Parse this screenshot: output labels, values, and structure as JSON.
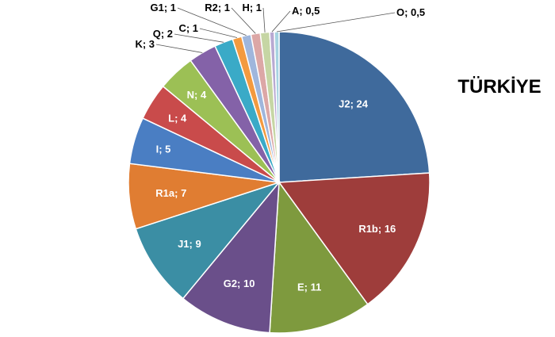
{
  "chart_data": {
    "type": "pie",
    "title": "TÜRKİYE",
    "slices": [
      {
        "label": "J2; 24",
        "value": 24,
        "color": "#3f6a9c"
      },
      {
        "label": "R1b; 16",
        "value": 16,
        "color": "#9e3d3b"
      },
      {
        "label": "E; 11",
        "value": 11,
        "color": "#7e9a3e"
      },
      {
        "label": "G2; 10",
        "value": 10,
        "color": "#6a4f8a"
      },
      {
        "label": "J1; 9",
        "value": 9,
        "color": "#3b8ea4"
      },
      {
        "label": "R1a; 7",
        "value": 7,
        "color": "#e07d32"
      },
      {
        "label": "I; 5",
        "value": 5,
        "color": "#4a7ec3"
      },
      {
        "label": "L; 4",
        "value": 4,
        "color": "#c94b4b"
      },
      {
        "label": "N; 4",
        "value": 4,
        "color": "#9cc055"
      },
      {
        "label": "K; 3",
        "value": 3,
        "color": "#8462a8"
      },
      {
        "label": "Q; 2",
        "value": 2,
        "color": "#3aaac7"
      },
      {
        "label": "C; 1",
        "value": 1,
        "color": "#f39a3f"
      },
      {
        "label": "G1; 1",
        "value": 1,
        "color": "#9fb6dc"
      },
      {
        "label": "R2; 1",
        "value": 1,
        "color": "#dca7a6"
      },
      {
        "label": "H; 1",
        "value": 1,
        "color": "#c6d6a4"
      },
      {
        "label": "A; 0,5",
        "value": 0.5,
        "color": "#b8a9d2"
      },
      {
        "label": "O; 0,5",
        "value": 0.5,
        "color": "#a6d3e1"
      }
    ]
  }
}
